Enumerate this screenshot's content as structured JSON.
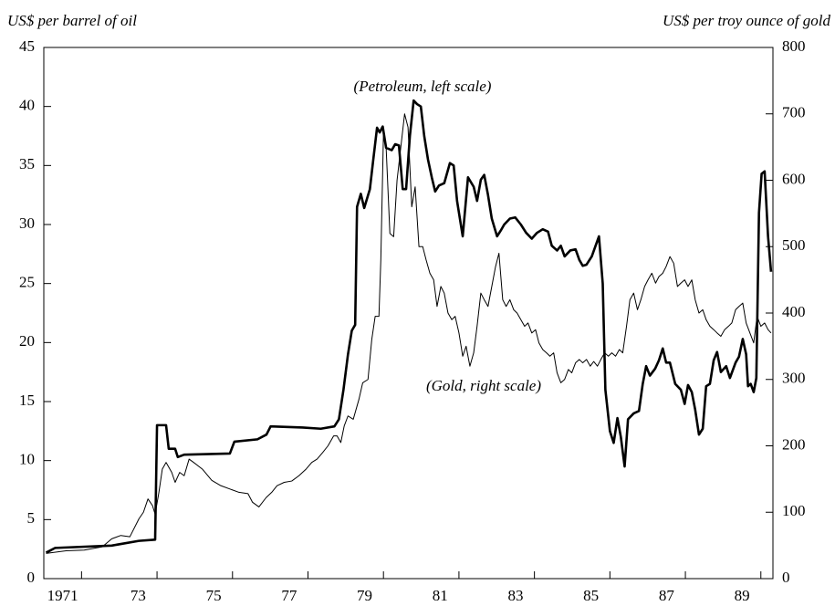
{
  "chart_data": {
    "type": "line",
    "y_label": "US$ per barrel of oil",
    "y2_label": "US$ per troy ounce of gold",
    "annotations": [
      {
        "text": "(Petroleum, left scale)"
      },
      {
        "text": "(Gold, right scale)"
      }
    ],
    "xlim": [
      1971,
      1990.32
    ],
    "xticks": [
      1971,
      {
        "value": 1973,
        "label": "73"
      },
      {
        "value": 1975,
        "label": "75"
      },
      {
        "value": 1977,
        "label": "77"
      },
      {
        "value": 1979,
        "label": "79"
      },
      {
        "value": 1981,
        "label": "81"
      },
      {
        "value": 1983,
        "label": "83"
      },
      {
        "value": 1985,
        "label": "85"
      },
      {
        "value": 1987,
        "label": "87"
      },
      {
        "value": 1989,
        "label": "89"
      }
    ],
    "ylim": [
      0,
      45
    ],
    "yticks": [
      0,
      5,
      10,
      15,
      20,
      25,
      30,
      35,
      40,
      45
    ],
    "y2lim": [
      0,
      800
    ],
    "y2ticks": [
      0,
      100,
      200,
      300,
      400,
      500,
      600,
      700,
      800
    ],
    "series": [
      {
        "color": "#000000",
        "x": [
          1971.06,
          1971.3,
          1972.8,
          1973.52,
          1973.95,
          1974.0,
          1974.24,
          1974.31,
          1974.48,
          1974.55,
          1974.72,
          1975.93,
          1976.05,
          1976.66,
          1976.9,
          1977.01,
          1977.86,
          1978.34,
          1978.7,
          1978.82,
          1978.94,
          1979.06,
          1979.16,
          1979.25,
          1979.3,
          1979.4,
          1979.49,
          1979.64,
          1979.73,
          1979.83,
          1979.9,
          1979.98,
          1980.07,
          1980.22,
          1980.31,
          1980.41,
          1980.51,
          1980.6,
          1980.7,
          1980.8,
          1980.89,
          1980.99,
          1981.08,
          1981.18,
          1981.28,
          1981.37,
          1981.47,
          1981.61,
          1981.76,
          1981.86,
          1981.95,
          1982.1,
          1982.24,
          1982.39,
          1982.48,
          1982.58,
          1982.67,
          1982.77,
          1982.87,
          1983.01,
          1983.11,
          1983.2,
          1983.35,
          1983.49,
          1983.64,
          1983.78,
          1983.93,
          1984.07,
          1984.22,
          1984.36,
          1984.46,
          1984.6,
          1984.7,
          1984.8,
          1984.95,
          1985.09,
          1985.19,
          1985.28,
          1985.38,
          1985.52,
          1985.62,
          1985.71,
          1985.81,
          1985.88,
          1986.0,
          1986.1,
          1986.2,
          1986.29,
          1986.39,
          1986.48,
          1986.63,
          1986.77,
          1986.87,
          1986.96,
          1987.06,
          1987.2,
          1987.3,
          1987.4,
          1987.49,
          1987.59,
          1987.73,
          1987.88,
          1987.98,
          1988.07,
          1988.17,
          1988.26,
          1988.36,
          1988.46,
          1988.55,
          1988.65,
          1988.75,
          1988.84,
          1988.94,
          1989.08,
          1989.18,
          1989.33,
          1989.42,
          1989.52,
          1989.61,
          1989.66,
          1989.73,
          1989.81,
          1989.88,
          1989.95,
          1990.02,
          1990.1,
          1990.19,
          1990.27
        ],
        "values": [
          2.2,
          2.6,
          2.8,
          3.2,
          3.3,
          13.0,
          13.0,
          11.0,
          11.0,
          10.3,
          10.5,
          10.6,
          11.6,
          11.8,
          12.2,
          12.9,
          12.8,
          12.7,
          12.9,
          13.5,
          16,
          19,
          21,
          21.5,
          31.5,
          32.6,
          31.4,
          33,
          35.5,
          38.2,
          37.8,
          38.3,
          36.5,
          36.3,
          36.8,
          36.7,
          33,
          33,
          37.5,
          40.5,
          40.2,
          40,
          37.5,
          35.5,
          34,
          32.8,
          33.3,
          33.5,
          35.2,
          35,
          32,
          29,
          34,
          33.2,
          32,
          33.8,
          34.2,
          32.5,
          30.5,
          29,
          29.5,
          30,
          30.5,
          30.6,
          30,
          29.3,
          28.8,
          29.3,
          29.6,
          29.4,
          28.2,
          27.8,
          28.2,
          27.3,
          27.8,
          27.9,
          27,
          26.5,
          26.6,
          27.3,
          28.2,
          29,
          25,
          16,
          12.5,
          11.5,
          13.6,
          12,
          9.5,
          13.5,
          14,
          14.2,
          16.5,
          18,
          17.2,
          17.8,
          18.5,
          19.5,
          18.3,
          18.3,
          16.5,
          16,
          14.8,
          16.4,
          15.8,
          14.3,
          12.2,
          12.7,
          16.3,
          16.5,
          18.5,
          19.2,
          17.5,
          18,
          17,
          18.3,
          18.8,
          20.3,
          19,
          16.3,
          16.5,
          15.8,
          17,
          31,
          34.3,
          34.5,
          29,
          26
        ]
      },
      {
        "color": "#000000",
        "axis": "y2",
        "x": [
          1971.06,
          1971.59,
          1972.07,
          1972.55,
          1972.8,
          1973.04,
          1973.28,
          1973.52,
          1973.64,
          1973.76,
          1973.88,
          1973.95,
          1974.05,
          1974.14,
          1974.24,
          1974.39,
          1974.48,
          1974.6,
          1974.72,
          1974.85,
          1974.97,
          1975.2,
          1975.45,
          1975.69,
          1975.93,
          1976.17,
          1976.41,
          1976.53,
          1976.7,
          1976.89,
          1977.04,
          1977.18,
          1977.37,
          1977.57,
          1977.76,
          1977.95,
          1978.1,
          1978.24,
          1978.39,
          1978.53,
          1978.68,
          1978.77,
          1978.87,
          1978.96,
          1979.06,
          1979.2,
          1979.35,
          1979.45,
          1979.59,
          1979.69,
          1979.78,
          1979.88,
          1979.93,
          1980.0,
          1980.07,
          1980.17,
          1980.27,
          1980.36,
          1980.46,
          1980.56,
          1980.65,
          1980.75,
          1980.84,
          1980.94,
          1981.04,
          1981.13,
          1981.23,
          1981.33,
          1981.42,
          1981.52,
          1981.61,
          1981.71,
          1981.81,
          1981.9,
          1982.0,
          1982.1,
          1982.19,
          1982.29,
          1982.39,
          1982.48,
          1982.58,
          1982.67,
          1982.77,
          1982.87,
          1982.97,
          1983.06,
          1983.16,
          1983.25,
          1983.35,
          1983.45,
          1983.54,
          1983.64,
          1983.74,
          1983.83,
          1983.93,
          1984.03,
          1984.12,
          1984.22,
          1984.32,
          1984.41,
          1984.51,
          1984.6,
          1984.7,
          1984.8,
          1984.9,
          1984.99,
          1985.09,
          1985.19,
          1985.28,
          1985.38,
          1985.48,
          1985.57,
          1985.67,
          1985.76,
          1985.86,
          1985.96,
          1986.05,
          1986.15,
          1986.25,
          1986.34,
          1986.44,
          1986.53,
          1986.63,
          1986.73,
          1986.82,
          1986.92,
          1987.01,
          1987.11,
          1987.21,
          1987.3,
          1987.4,
          1987.49,
          1987.59,
          1987.69,
          1987.79,
          1987.88,
          1987.98,
          1988.07,
          1988.17,
          1988.26,
          1988.36,
          1988.46,
          1988.55,
          1988.65,
          1988.75,
          1988.84,
          1988.94,
          1989.04,
          1989.14,
          1989.23,
          1989.33,
          1989.42,
          1989.52,
          1989.61,
          1989.71,
          1989.81,
          1989.9,
          1990.0,
          1990.1,
          1990.19,
          1990.27
        ],
        "values": [
          38,
          42,
          43,
          48,
          60,
          65,
          63,
          90,
          100,
          120,
          110,
          97,
          130,
          165,
          175,
          160,
          145,
          160,
          155,
          180,
          175,
          165,
          148,
          140,
          135,
          130,
          128,
          115,
          108,
          122,
          130,
          140,
          145,
          147,
          155,
          165,
          175,
          180,
          190,
          200,
          215,
          215,
          205,
          230,
          245,
          240,
          270,
          295,
          300,
          360,
          395,
          395,
          480,
          670,
          650,
          520,
          515,
          600,
          650,
          700,
          680,
          560,
          590,
          500,
          500,
          480,
          460,
          450,
          410,
          440,
          430,
          400,
          390,
          395,
          370,
          335,
          350,
          320,
          340,
          380,
          430,
          420,
          410,
          440,
          470,
          490,
          420,
          410,
          420,
          405,
          400,
          390,
          380,
          385,
          370,
          375,
          355,
          345,
          340,
          335,
          340,
          310,
          295,
          300,
          315,
          310,
          325,
          330,
          325,
          330,
          320,
          327,
          320,
          330,
          340,
          335,
          340,
          335,
          345,
          340,
          380,
          420,
          430,
          405,
          420,
          440,
          450,
          460,
          445,
          455,
          460,
          470,
          485,
          475,
          440,
          445,
          450,
          440,
          450,
          420,
          400,
          405,
          390,
          380,
          375,
          370,
          365,
          375,
          380,
          385,
          405,
          410,
          415,
          385,
          370,
          355,
          395,
          380,
          385,
          375,
          370
        ]
      }
    ]
  }
}
